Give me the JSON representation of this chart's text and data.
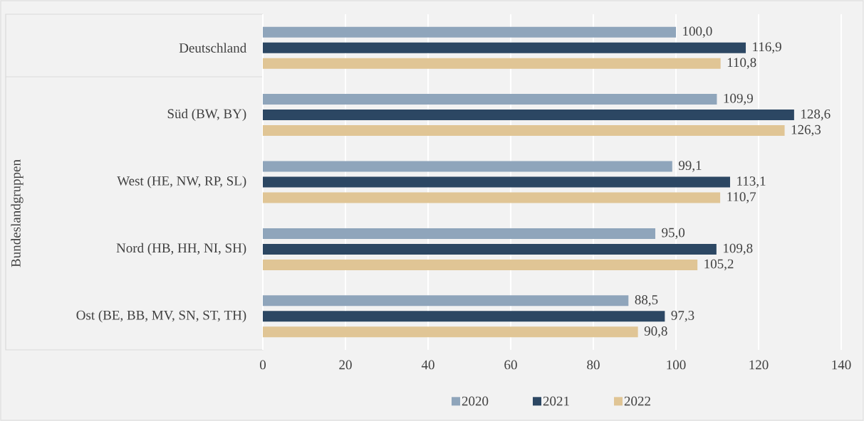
{
  "chart_data": {
    "type": "bar",
    "orientation": "horizontal",
    "ylabel": "Bundeslandgruppen",
    "categories": [
      "Deutschland",
      "Süd (BW, BY)",
      "West (HE, NW, RP, SL)",
      "Nord (HB, HH, NI, SH)",
      "Ost (BE, BB, MV, SN, ST, TH)"
    ],
    "series": [
      {
        "name": "2020",
        "color": "#8fa5bb",
        "values": [
          100.0,
          109.9,
          99.1,
          95.0,
          88.5
        ],
        "value_labels": [
          "100,0",
          "109,9",
          "99,1",
          "95,0",
          "88,5"
        ]
      },
      {
        "name": "2021",
        "color": "#2c4763",
        "values": [
          116.9,
          128.6,
          113.1,
          109.8,
          97.3
        ],
        "value_labels": [
          "116,9",
          "128,6",
          "113,1",
          "109,8",
          "97,3"
        ]
      },
      {
        "name": "2022",
        "color": "#e0c595",
        "values": [
          110.8,
          126.3,
          110.7,
          105.2,
          90.8
        ],
        "value_labels": [
          "110,8",
          "126,3",
          "110,7",
          "105,2",
          "90,8"
        ]
      }
    ],
    "xlim": [
      0,
      140
    ],
    "xticks": [
      0,
      20,
      40,
      60,
      80,
      100,
      120,
      140
    ],
    "grid": "x",
    "legend": "bottom"
  }
}
